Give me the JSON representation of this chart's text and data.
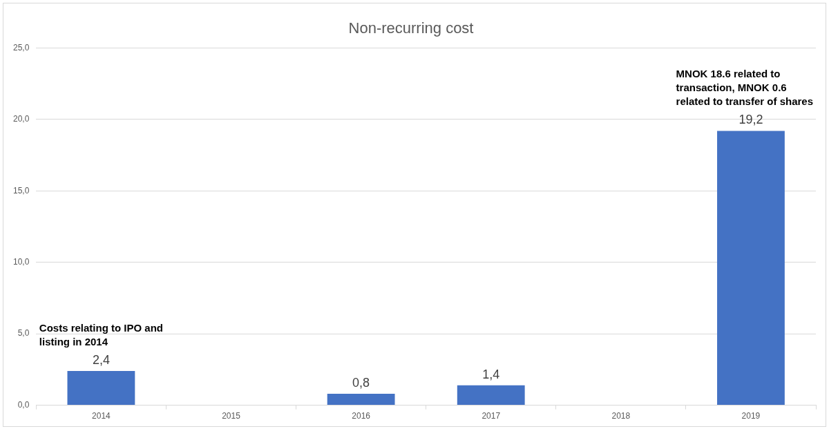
{
  "chart_data": {
    "type": "bar",
    "title": "Non-recurring cost",
    "categories": [
      "2014",
      "2015",
      "2016",
      "2017",
      "2018",
      "2019"
    ],
    "values": [
      2.4,
      null,
      0.8,
      1.4,
      null,
      19.2
    ],
    "value_labels": [
      "2,4",
      null,
      "0,8",
      "1,4",
      null,
      "19,2"
    ],
    "color": "#4472c4",
    "ylim": [
      0,
      25
    ],
    "yticks": [
      {
        "value": 0,
        "label": "0,0"
      },
      {
        "value": 5,
        "label": "5,0"
      },
      {
        "value": 10,
        "label": "10,0"
      },
      {
        "value": 15,
        "label": "15,0"
      },
      {
        "value": 20,
        "label": "20,0"
      },
      {
        "value": 25,
        "label": "25,0"
      }
    ],
    "grid": "y",
    "legend": false,
    "annotations": [
      {
        "text": "Costs relating to IPO and listing in 2014",
        "x": "2014",
        "y": 2.4
      },
      {
        "text": "MNOK 18.6 related to transaction, MNOK 0.6 related to transfer of shares",
        "x": "2019",
        "y": 19.2
      }
    ]
  }
}
